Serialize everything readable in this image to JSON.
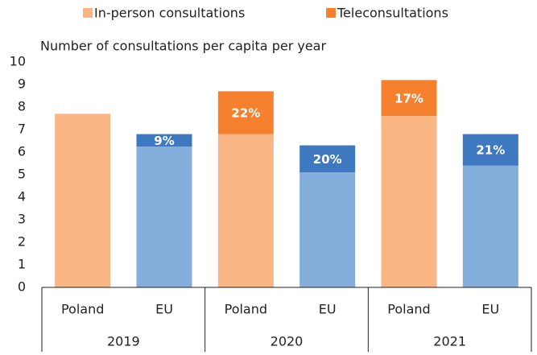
{
  "chart_data": {
    "type": "stacked_bar",
    "y_axis_label": "Number of consultations per capita per year",
    "categories": [
      "Poland",
      "EU",
      "Poland",
      "EU",
      "Poland",
      "EU"
    ],
    "groups": [
      "2019",
      "2020",
      "2021"
    ],
    "series": [
      {
        "name": "In-person consultations",
        "color": "#f9b584",
        "bar_colors": [
          "#f9b584",
          "#84aedc",
          "#f9b584",
          "#84aedc",
          "#f9b584",
          "#84aedc"
        ],
        "values": [
          7.7,
          6.25,
          6.8,
          5.1,
          7.6,
          5.4
        ]
      },
      {
        "name": "Teleconsultations",
        "color": "#f5812e",
        "bar_colors": [
          "#f5812e",
          "#3d78c0",
          "#f5812e",
          "#3d78c0",
          "#f5812e",
          "#3d78c0"
        ],
        "values": [
          0,
          0.55,
          1.9,
          1.2,
          1.6,
          1.4
        ],
        "share_labels": [
          null,
          "9%",
          "22%",
          "20%",
          "17%",
          "21%"
        ]
      }
    ],
    "ylim": [
      0,
      10
    ],
    "yticks": [
      0,
      1,
      2,
      3,
      4,
      5,
      6,
      7,
      8,
      9,
      10
    ],
    "grid": false,
    "legend": "top"
  }
}
